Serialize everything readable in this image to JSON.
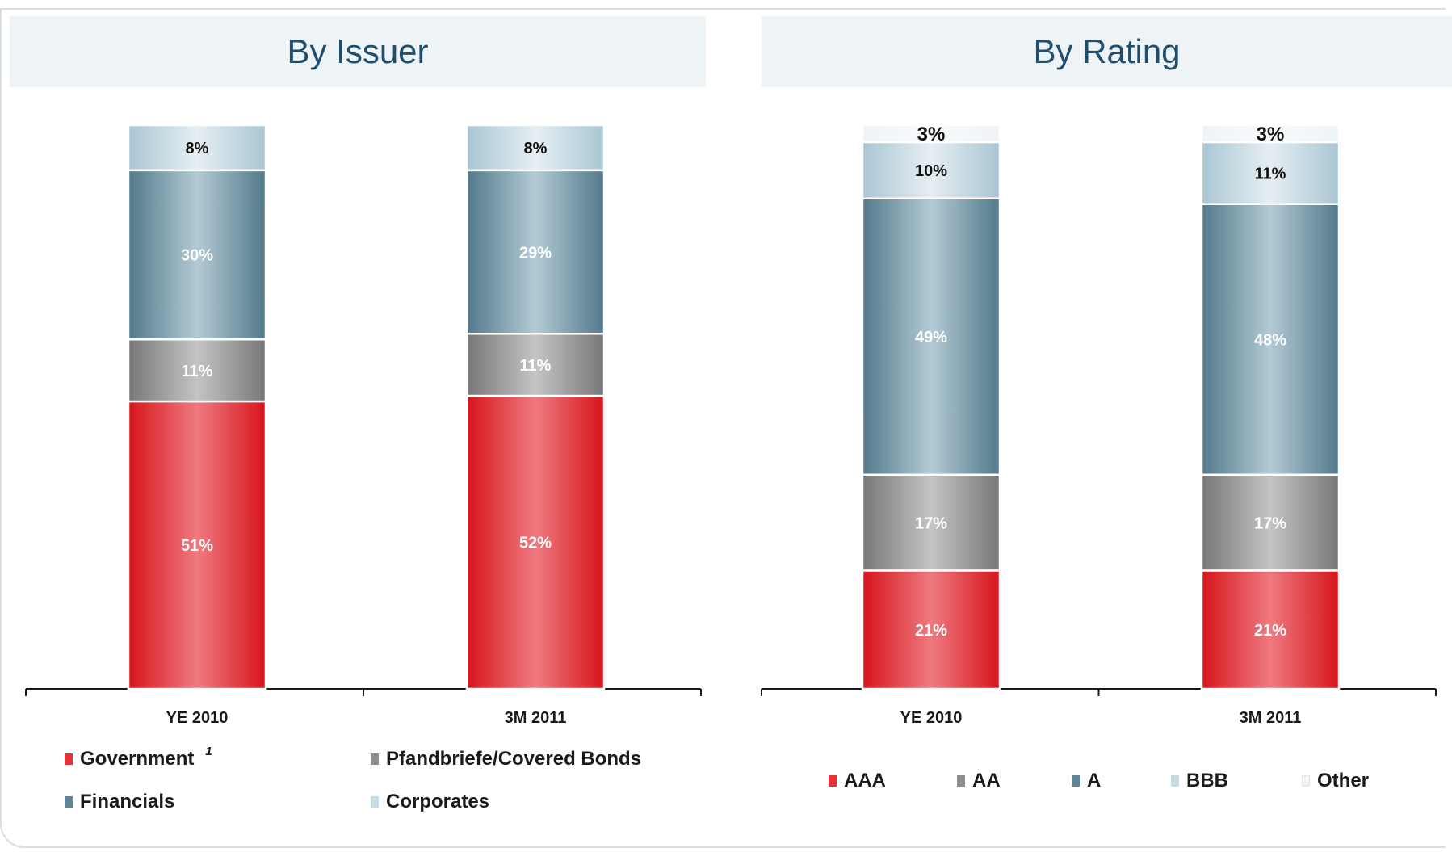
{
  "headers": {
    "issuer": "By Issuer",
    "rating": "By Rating"
  },
  "colors": {
    "red": "#e8323a",
    "gray": "#8e8e8e",
    "teal": "#5d8597",
    "lightblue": "#c7dbe4",
    "verylight": "#eef3f6",
    "axis": "#1a1a1a"
  },
  "chart_data": [
    {
      "type": "bar",
      "stacked": true,
      "title": "By Issuer",
      "categories": [
        "YE 2010",
        "3M 2011"
      ],
      "series": [
        {
          "name": "Government",
          "values": [
            51,
            52
          ],
          "labels": [
            "51%",
            "52%"
          ],
          "color": "red"
        },
        {
          "name": "Pfandbriefe/Covered Bonds",
          "values": [
            11,
            11
          ],
          "labels": [
            "11%",
            "11%"
          ],
          "color": "gray"
        },
        {
          "name": "Financials",
          "values": [
            30,
            29
          ],
          "labels": [
            "30%",
            "29%"
          ],
          "color": "teal"
        },
        {
          "name": "Corporates",
          "values": [
            8,
            8
          ],
          "labels": [
            "8%",
            "8%"
          ],
          "color": "lightblue"
        }
      ],
      "ylim": [
        0,
        100
      ],
      "grid": false,
      "legend_position": "bottom"
    },
    {
      "type": "bar",
      "stacked": true,
      "title": "By Rating",
      "categories": [
        "YE 2010",
        "3M 2011"
      ],
      "series": [
        {
          "name": "AAA",
          "values": [
            21,
            21
          ],
          "labels": [
            "21%",
            "21%"
          ],
          "color": "red"
        },
        {
          "name": "AA",
          "values": [
            17,
            17
          ],
          "labels": [
            "17%",
            "17%"
          ],
          "color": "gray"
        },
        {
          "name": "A",
          "values": [
            49,
            48
          ],
          "labels": [
            "49%",
            "48%"
          ],
          "color": "teal"
        },
        {
          "name": "BBB",
          "values": [
            10,
            11
          ],
          "labels": [
            "10%",
            "11%"
          ],
          "color": "lightblue"
        },
        {
          "name": "Other",
          "values": [
            3,
            3
          ],
          "labels": [
            "3%",
            "3%"
          ],
          "color": "verylight"
        }
      ],
      "ylim": [
        0,
        100
      ],
      "grid": false,
      "legend_position": "bottom"
    }
  ],
  "legend": {
    "issuer": [
      {
        "label": "Government",
        "note": "1",
        "color": "red"
      },
      {
        "label": "Pfandbriefe/Covered Bonds",
        "color": "gray"
      },
      {
        "label": "Financials",
        "color": "teal"
      },
      {
        "label": "Corporates",
        "color": "lightblue"
      }
    ],
    "rating": [
      {
        "label": "AAA",
        "color": "red"
      },
      {
        "label": "AA",
        "color": "gray"
      },
      {
        "label": "A",
        "color": "teal"
      },
      {
        "label": "BBB",
        "color": "lightblue"
      },
      {
        "label": "Other",
        "color": "verylight"
      }
    ]
  }
}
